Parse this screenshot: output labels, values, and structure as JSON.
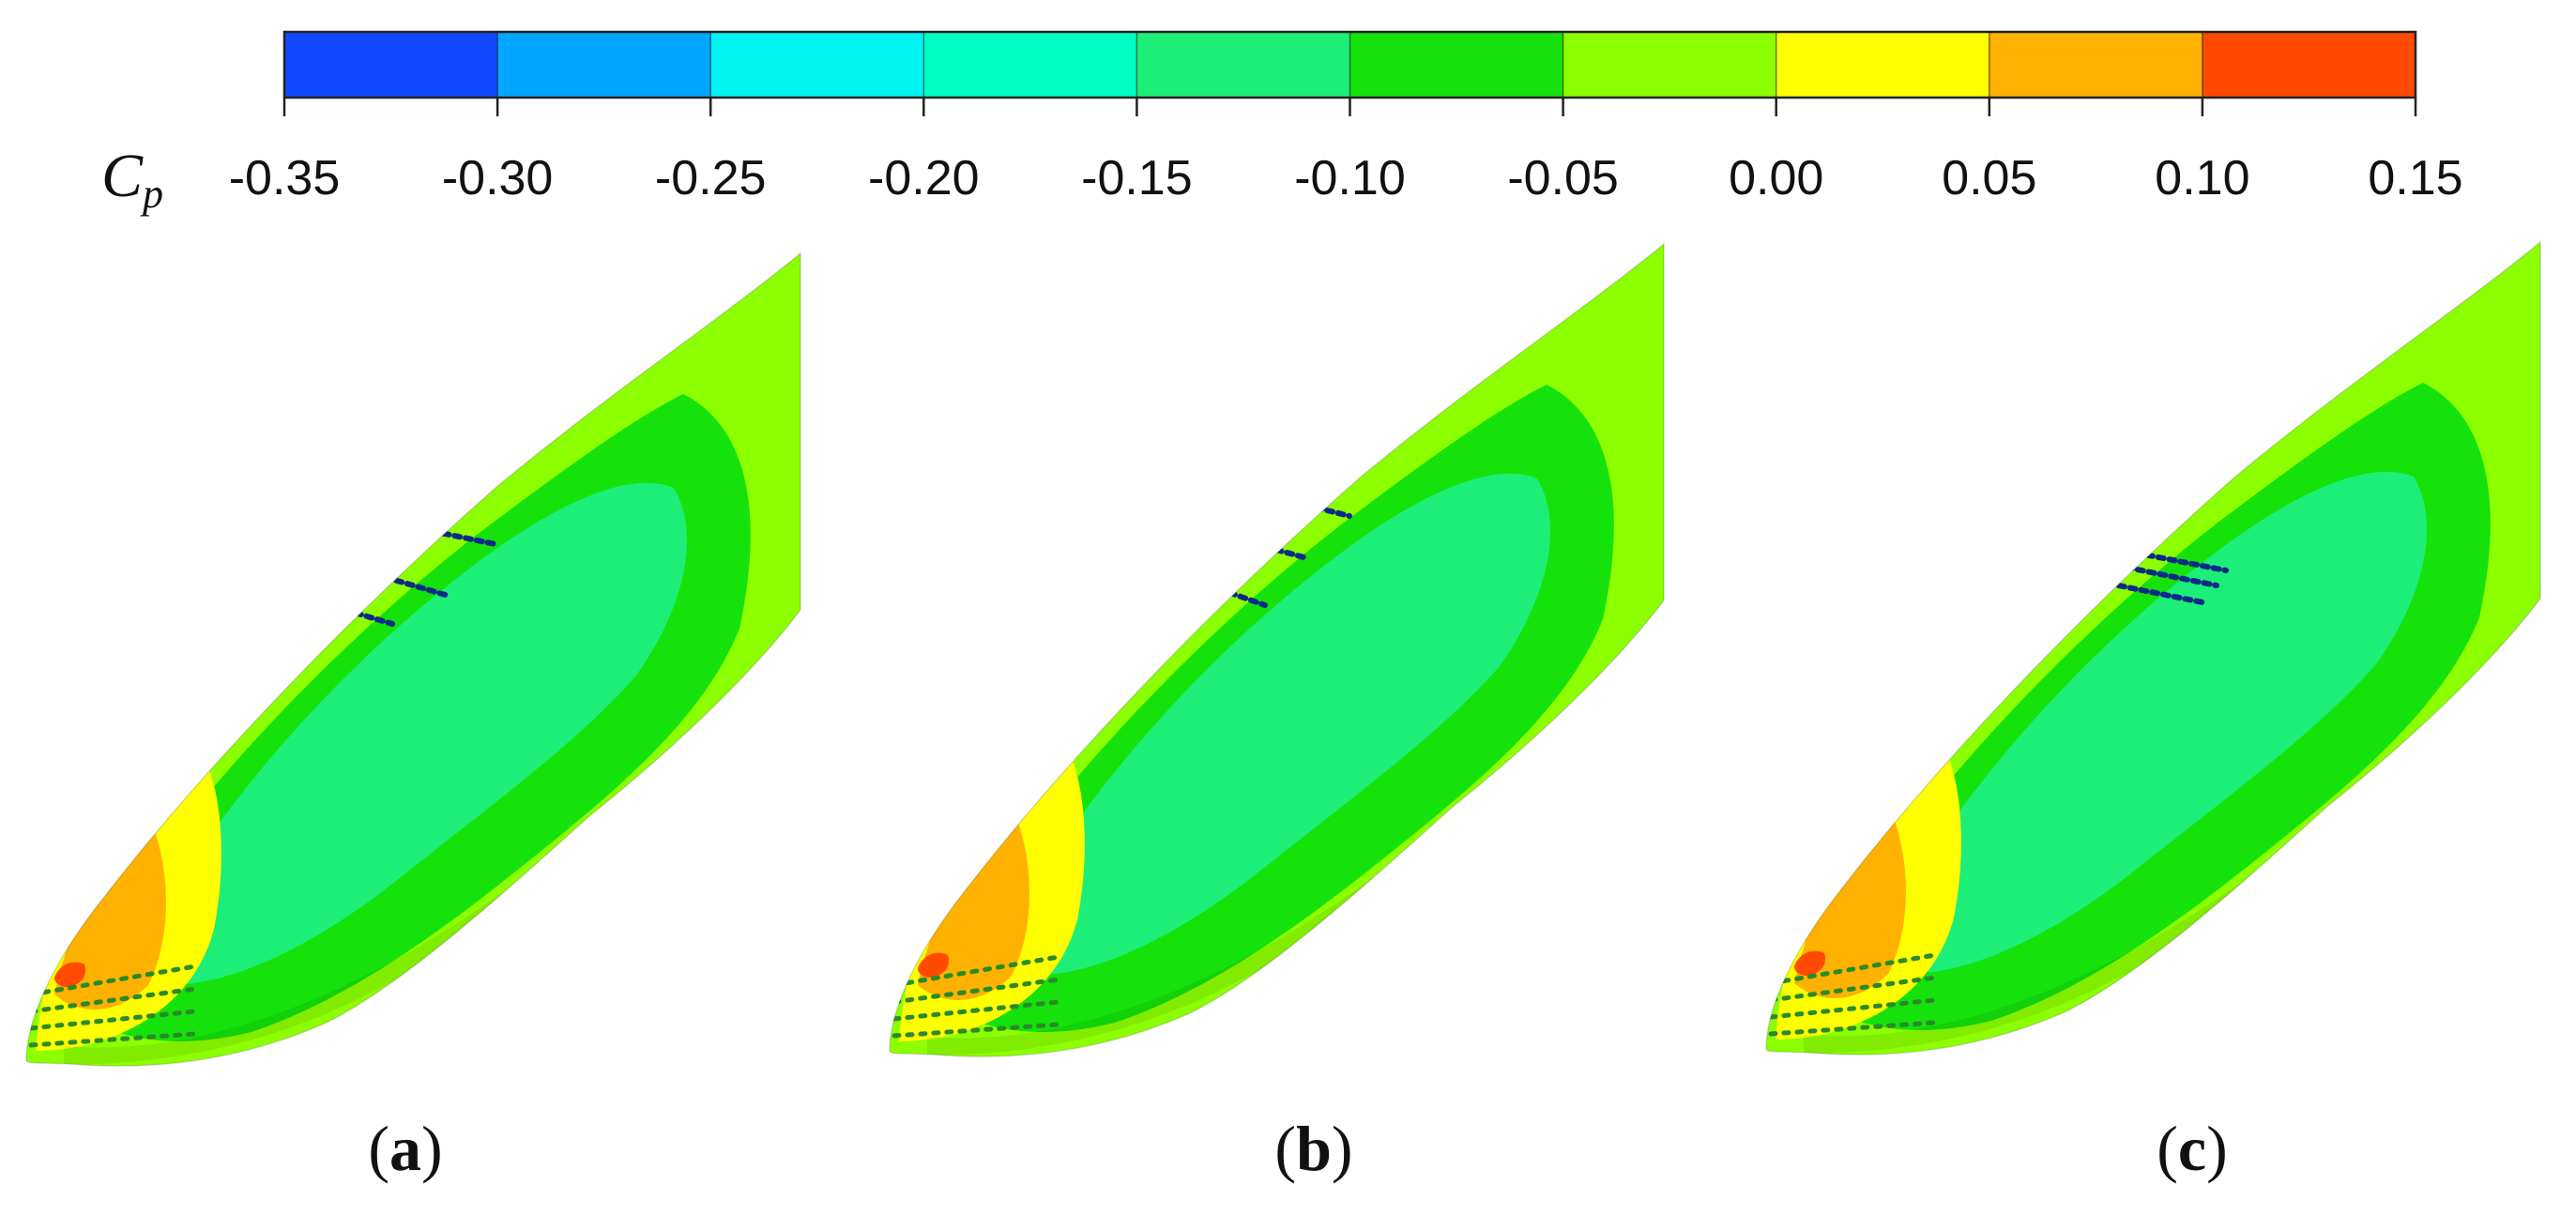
{
  "colorbar": {
    "variable": "C",
    "variable_sub": "p",
    "ticks": [
      "-0.35",
      "-0.30",
      "-0.25",
      "-0.20",
      "-0.15",
      "-0.10",
      "-0.05",
      "0.00",
      "0.05",
      "0.10",
      "0.15"
    ],
    "colors": [
      "#1048ff",
      "#00a6ff",
      "#00f5f2",
      "#00ffc4",
      "#1dee78",
      "#14e20a",
      "#8cff00",
      "#ffff00",
      "#ffb100",
      "#ff4a00"
    ]
  },
  "panels": [
    {
      "open": "(",
      "letter": "a",
      "close": ")"
    },
    {
      "open": "(",
      "letter": "b",
      "close": ")"
    },
    {
      "open": "(",
      "letter": "c",
      "close": ")"
    }
  ]
}
